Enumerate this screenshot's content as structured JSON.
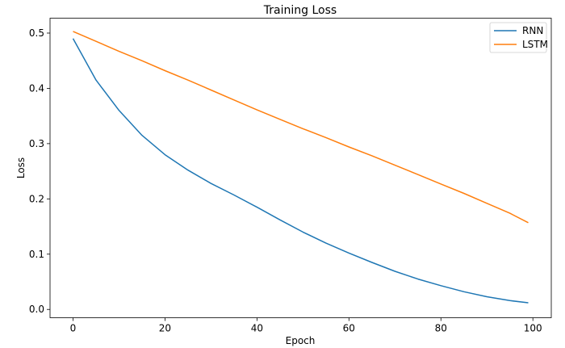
{
  "chart_data": {
    "type": "line",
    "title": "Training Loss",
    "xlabel": "Epoch",
    "ylabel": "Loss",
    "xlim": [
      -5,
      104
    ],
    "ylim": [
      -0.015,
      0.527
    ],
    "xticks": [
      0,
      20,
      40,
      60,
      80,
      100
    ],
    "xtick_labels": [
      "0",
      "20",
      "40",
      "60",
      "80",
      "100"
    ],
    "yticks": [
      0.0,
      0.1,
      0.2,
      0.3,
      0.4,
      0.5
    ],
    "ytick_labels": [
      "0.0",
      "0.1",
      "0.2",
      "0.3",
      "0.4",
      "0.5"
    ],
    "grid": false,
    "legend_position": "top-right",
    "x": [
      0,
      5,
      10,
      15,
      20,
      25,
      30,
      35,
      40,
      45,
      50,
      55,
      60,
      65,
      70,
      75,
      80,
      85,
      90,
      95,
      99
    ],
    "series": [
      {
        "name": "RNN",
        "color": "#1f77b4",
        "values": [
          0.49,
          0.415,
          0.36,
          0.315,
          0.28,
          0.252,
          0.228,
          0.207,
          0.185,
          0.162,
          0.14,
          0.12,
          0.102,
          0.085,
          0.069,
          0.055,
          0.043,
          0.032,
          0.023,
          0.016,
          0.012
        ]
      },
      {
        "name": "LSTM",
        "color": "#ff7f0e",
        "values": [
          0.503,
          0.485,
          0.467,
          0.45,
          0.432,
          0.415,
          0.397,
          0.379,
          0.361,
          0.344,
          0.327,
          0.311,
          0.294,
          0.278,
          0.261,
          0.244,
          0.227,
          0.21,
          0.192,
          0.174,
          0.157
        ]
      }
    ]
  }
}
